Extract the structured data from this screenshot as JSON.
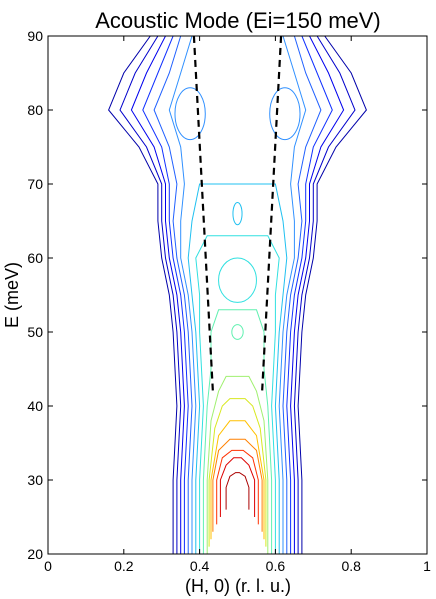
{
  "chart_data": {
    "type": "contour",
    "title": "Acoustic Mode (Ei=150 meV)",
    "xlabel": "(H, 0) (r. l. u.)",
    "ylabel": "E (meV)",
    "xlim": [
      0,
      1
    ],
    "ylim": [
      20,
      90
    ],
    "xticks": [
      "0",
      "0.2",
      "0.4",
      "0.6",
      "0.8",
      "1"
    ],
    "yticks": [
      "20",
      "30",
      "40",
      "50",
      "60",
      "70",
      "80",
      "90"
    ],
    "grid": false,
    "legend": "none",
    "contour_levels": [
      {
        "color": "#0000aa",
        "half_width": [
          [
            20,
            0.17
          ],
          [
            30,
            0.17
          ],
          [
            40,
            0.16
          ],
          [
            50,
            0.17
          ],
          [
            55,
            0.18
          ],
          [
            60,
            0.2
          ],
          [
            65,
            0.21
          ],
          [
            70,
            0.21
          ],
          [
            75,
            0.26
          ],
          [
            80,
            0.34
          ],
          [
            85,
            0.3
          ],
          [
            90,
            0.23
          ]
        ]
      },
      {
        "color": "#0000cc",
        "half_width": [
          [
            20,
            0.16
          ],
          [
            30,
            0.16
          ],
          [
            40,
            0.15
          ],
          [
            50,
            0.16
          ],
          [
            55,
            0.17
          ],
          [
            60,
            0.19
          ],
          [
            65,
            0.2
          ],
          [
            70,
            0.2
          ],
          [
            75,
            0.24
          ],
          [
            80,
            0.31
          ],
          [
            85,
            0.27
          ],
          [
            90,
            0.21
          ]
        ]
      },
      {
        "color": "#0000ee",
        "half_width": [
          [
            20,
            0.15
          ],
          [
            30,
            0.15
          ],
          [
            40,
            0.14
          ],
          [
            50,
            0.15
          ],
          [
            55,
            0.16
          ],
          [
            60,
            0.18
          ],
          [
            65,
            0.19
          ],
          [
            70,
            0.19
          ],
          [
            75,
            0.22
          ],
          [
            80,
            0.28
          ],
          [
            85,
            0.24
          ],
          [
            90,
            0.19
          ]
        ]
      },
      {
        "color": "#1030ff",
        "half_width": [
          [
            20,
            0.14
          ],
          [
            30,
            0.14
          ],
          [
            40,
            0.13
          ],
          [
            50,
            0.14
          ],
          [
            55,
            0.15
          ],
          [
            60,
            0.17
          ],
          [
            65,
            0.18
          ],
          [
            70,
            0.18
          ],
          [
            75,
            0.2
          ],
          [
            80,
            0.25
          ],
          [
            85,
            0.21
          ],
          [
            90,
            0.17
          ]
        ]
      },
      {
        "color": "#2060ff",
        "half_width": [
          [
            20,
            0.13
          ],
          [
            30,
            0.13
          ],
          [
            40,
            0.12
          ],
          [
            50,
            0.13
          ],
          [
            55,
            0.14
          ],
          [
            60,
            0.16
          ],
          [
            65,
            0.17
          ],
          [
            70,
            0.16
          ],
          [
            75,
            0.18
          ],
          [
            80,
            0.22
          ],
          [
            85,
            0.18
          ],
          [
            90,
            0.15
          ]
        ]
      },
      {
        "color": "#3090ff",
        "half_width": [
          [
            20,
            0.12
          ],
          [
            30,
            0.12
          ],
          [
            40,
            0.11
          ],
          [
            50,
            0.12
          ],
          [
            55,
            0.13
          ],
          [
            60,
            0.15
          ],
          [
            65,
            0.15
          ],
          [
            70,
            0.14
          ],
          [
            75,
            0.15
          ],
          [
            80,
            0.18
          ],
          [
            85,
            0.15
          ],
          [
            90,
            0.12
          ]
        ]
      },
      {
        "color": "#20c0f0",
        "half_width": [
          [
            20,
            0.11
          ],
          [
            30,
            0.11
          ],
          [
            40,
            0.1
          ],
          [
            50,
            0.11
          ],
          [
            55,
            0.12
          ],
          [
            60,
            0.13
          ],
          [
            65,
            0.12
          ],
          [
            70,
            0.1
          ]
        ]
      },
      {
        "color": "#30e0e0",
        "half_width": [
          [
            20,
            0.1
          ],
          [
            30,
            0.1
          ],
          [
            40,
            0.09
          ],
          [
            50,
            0.1
          ],
          [
            55,
            0.1
          ],
          [
            60,
            0.11
          ],
          [
            63,
            0.08
          ]
        ]
      },
      {
        "color": "#60f0b0",
        "half_width": [
          [
            20,
            0.09
          ],
          [
            30,
            0.09
          ],
          [
            40,
            0.08
          ],
          [
            45,
            0.07
          ],
          [
            48,
            0.07
          ],
          [
            50,
            0.07
          ],
          [
            53,
            0.05
          ]
        ]
      },
      {
        "color": "#a0f070",
        "half_width": [
          [
            20,
            0.08
          ],
          [
            30,
            0.08
          ],
          [
            38,
            0.07
          ],
          [
            42,
            0.05
          ],
          [
            44,
            0.03
          ]
        ]
      },
      {
        "color": "#d8e820",
        "half_width": [
          [
            21,
            0.075
          ],
          [
            30,
            0.075
          ],
          [
            37,
            0.06
          ],
          [
            40,
            0.04
          ],
          [
            41,
            0.02
          ]
        ]
      },
      {
        "color": "#ffc000",
        "half_width": [
          [
            22,
            0.07
          ],
          [
            30,
            0.07
          ],
          [
            36,
            0.05
          ],
          [
            38,
            0.02
          ]
        ]
      },
      {
        "color": "#ff8000",
        "half_width": [
          [
            23,
            0.065
          ],
          [
            30,
            0.065
          ],
          [
            34,
            0.05
          ],
          [
            35.5,
            0.02
          ]
        ]
      },
      {
        "color": "#ff3000",
        "half_width": [
          [
            24,
            0.055
          ],
          [
            30,
            0.055
          ],
          [
            33,
            0.04
          ],
          [
            34,
            0.015
          ]
        ]
      },
      {
        "color": "#dd0000",
        "half_width": [
          [
            25,
            0.045
          ],
          [
            30,
            0.045
          ],
          [
            32,
            0.03
          ],
          [
            33,
            0.01
          ]
        ]
      },
      {
        "color": "#aa0000",
        "half_width": [
          [
            26,
            0.03
          ],
          [
            29,
            0.03
          ],
          [
            30.5,
            0.02
          ],
          [
            31,
            0.005
          ]
        ]
      }
    ],
    "islands": [
      {
        "color": "#3090ff",
        "h": 0.375,
        "e": 79.5,
        "rh": 0.04,
        "re": 3.5
      },
      {
        "color": "#3090ff",
        "h": 0.625,
        "e": 79.5,
        "rh": 0.04,
        "re": 3.5
      },
      {
        "color": "#20c0f0",
        "h": 0.5,
        "e": 66,
        "rh": 0.012,
        "re": 1.5
      },
      {
        "color": "#30e0e0",
        "h": 0.5,
        "e": 57,
        "rh": 0.05,
        "re": 3
      },
      {
        "color": "#60f0b0",
        "h": 0.5,
        "e": 50,
        "rh": 0.015,
        "re": 1
      }
    ],
    "dispersion_dashed": [
      {
        "h": [
          0.385,
          0.435
        ],
        "e": [
          90,
          42
        ]
      },
      {
        "h": [
          0.615,
          0.565
        ],
        "e": [
          90,
          42
        ]
      }
    ]
  }
}
